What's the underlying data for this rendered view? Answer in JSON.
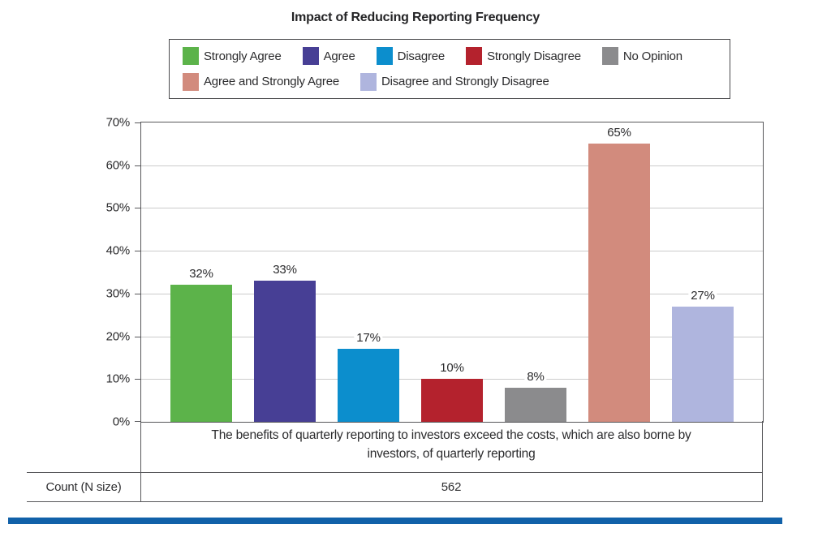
{
  "title": "Impact of Reducing Reporting Frequency",
  "legend": {
    "rows": [
      [
        {
          "label": "Strongly Agree",
          "color": "#5CB34A"
        },
        {
          "label": "Agree",
          "color": "#473F95"
        },
        {
          "label": "Disagree",
          "color": "#0C8ECD"
        },
        {
          "label": "Strongly Disagree",
          "color": "#B4222D"
        },
        {
          "label": "No Opinion",
          "color": "#8B8B8D"
        }
      ],
      [
        {
          "label": "Agree and Strongly Agree",
          "color": "#D28B7D"
        },
        {
          "label": "Disagree and Strongly Disagree",
          "color": "#AFB5DE"
        }
      ]
    ]
  },
  "chart_data": {
    "type": "bar",
    "title": "Impact of Reducing Reporting Frequency",
    "categories": [
      "Strongly Agree",
      "Agree",
      "Disagree",
      "Strongly Disagree",
      "No Opinion",
      "Agree and Strongly Agree",
      "Disagree and Strongly Disagree"
    ],
    "values": [
      32,
      33,
      17,
      10,
      8,
      65,
      27
    ],
    "value_labels": [
      "32%",
      "33%",
      "17%",
      "10%",
      "8%",
      "65%",
      "27%"
    ],
    "bar_colors": [
      "#5CB34A",
      "#473F95",
      "#0C8ECD",
      "#B4222D",
      "#8B8B8D",
      "#D28B7D",
      "#AFB5DE"
    ],
    "xlabel": "The benefits of quarterly reporting to investors exceed the costs, which are also borne by investors, of quarterly reporting",
    "ylabel": "",
    "ylim": [
      0,
      70
    ],
    "yticks": [
      "0%",
      "10%",
      "20%",
      "30%",
      "40%",
      "50%",
      "60%",
      "70%"
    ],
    "grid": true,
    "legend_position": "top"
  },
  "table": {
    "count_label": "Count (N size)",
    "count_value": "562"
  },
  "colors": {
    "bottom_rule": "#1161A9",
    "grid": "#CBCBCB",
    "frame": "#57575A"
  }
}
